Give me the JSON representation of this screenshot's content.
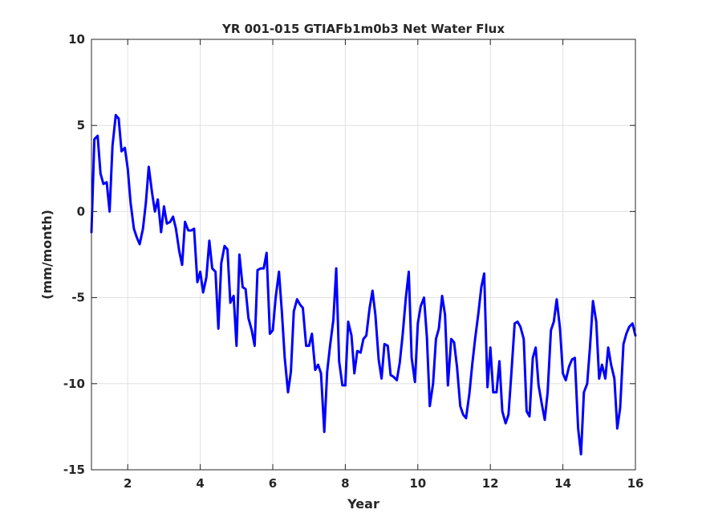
{
  "chart_data": {
    "type": "line",
    "title": "YR 001-015 GTIAFb1m0b3 Net Water Flux",
    "xlabel": "Year",
    "ylabel": "(mm/month)",
    "xlim": [
      1,
      16
    ],
    "ylim": [
      -15,
      10
    ],
    "xticks": [
      2,
      4,
      6,
      8,
      10,
      12,
      14,
      16
    ],
    "yticks": [
      -15,
      -10,
      -5,
      0,
      5,
      10
    ],
    "grid": true,
    "legend": "none",
    "series": [
      {
        "color": "#0000ff",
        "x": [
          1.0,
          1.08,
          1.17,
          1.25,
          1.33,
          1.42,
          1.5,
          1.58,
          1.67,
          1.75,
          1.83,
          1.92,
          2.0,
          2.08,
          2.17,
          2.25,
          2.33,
          2.42,
          2.5,
          2.58,
          2.67,
          2.75,
          2.83,
          2.92,
          3.0,
          3.08,
          3.17,
          3.25,
          3.33,
          3.42,
          3.5,
          3.58,
          3.67,
          3.75,
          3.83,
          3.92,
          4.0,
          4.08,
          4.17,
          4.25,
          4.33,
          4.42,
          4.5,
          4.58,
          4.67,
          4.75,
          4.83,
          4.92,
          5.0,
          5.08,
          5.17,
          5.25,
          5.33,
          5.42,
          5.5,
          5.58,
          5.67,
          5.75,
          5.83,
          5.92,
          6.0,
          6.08,
          6.17,
          6.25,
          6.33,
          6.42,
          6.5,
          6.58,
          6.67,
          6.75,
          6.83,
          6.92,
          7.0,
          7.08,
          7.17,
          7.25,
          7.33,
          7.42,
          7.5,
          7.58,
          7.67,
          7.75,
          7.83,
          7.92,
          8.0,
          8.08,
          8.17,
          8.25,
          8.33,
          8.42,
          8.5,
          8.58,
          8.67,
          8.75,
          8.83,
          8.92,
          9.0,
          9.08,
          9.17,
          9.25,
          9.33,
          9.42,
          9.5,
          9.58,
          9.67,
          9.75,
          9.83,
          9.92,
          10.0,
          10.08,
          10.17,
          10.25,
          10.33,
          10.42,
          10.5,
          10.58,
          10.67,
          10.75,
          10.83,
          10.92,
          11.0,
          11.08,
          11.17,
          11.25,
          11.33,
          11.42,
          11.5,
          11.58,
          11.67,
          11.75,
          11.83,
          11.92,
          12.0,
          12.08,
          12.17,
          12.25,
          12.33,
          12.42,
          12.5,
          12.58,
          12.67,
          12.75,
          12.83,
          12.92,
          13.0,
          13.08,
          13.17,
          13.25,
          13.33,
          13.42,
          13.5,
          13.58,
          13.67,
          13.75,
          13.83,
          13.92,
          14.0,
          14.08,
          14.17,
          14.25,
          14.33,
          14.42,
          14.5,
          14.58,
          14.67,
          14.75,
          14.83,
          14.92,
          15.0,
          15.08,
          15.17,
          15.25,
          15.33,
          15.42,
          15.5,
          15.58,
          15.67,
          15.75,
          15.83,
          15.92,
          16.0
        ],
        "y": [
          -1.2,
          4.2,
          4.4,
          2.2,
          1.6,
          1.7,
          0.0,
          3.8,
          5.6,
          5.4,
          3.5,
          3.7,
          2.5,
          0.5,
          -1.0,
          -1.5,
          -1.9,
          -1.0,
          0.5,
          2.6,
          1.1,
          0.0,
          0.7,
          -1.2,
          0.3,
          -0.7,
          -0.6,
          -0.3,
          -1.0,
          -2.3,
          -3.1,
          -0.6,
          -1.1,
          -1.1,
          -1.0,
          -4.1,
          -3.5,
          -4.7,
          -3.8,
          -1.7,
          -3.3,
          -3.5,
          -6.8,
          -3.0,
          -2.0,
          -2.2,
          -5.3,
          -4.9,
          -7.8,
          -2.5,
          -4.4,
          -4.5,
          -6.2,
          -6.9,
          -7.8,
          -3.4,
          -3.3,
          -3.3,
          -2.4,
          -7.1,
          -6.9,
          -5.0,
          -3.5,
          -5.8,
          -8.5,
          -10.5,
          -9.3,
          -5.8,
          -5.1,
          -5.4,
          -5.6,
          -7.8,
          -7.8,
          -7.1,
          -9.2,
          -8.9,
          -9.4,
          -12.8,
          -9.3,
          -7.8,
          -6.3,
          -3.3,
          -8.7,
          -10.1,
          -10.1,
          -6.4,
          -7.2,
          -9.4,
          -8.1,
          -8.2,
          -7.4,
          -7.2,
          -5.6,
          -4.6,
          -6.0,
          -8.6,
          -9.7,
          -7.7,
          -7.8,
          -9.5,
          -9.6,
          -9.8,
          -8.8,
          -7.2,
          -5.0,
          -3.5,
          -8.5,
          -9.9,
          -6.5,
          -5.5,
          -5.0,
          -7.3,
          -11.3,
          -10.0,
          -7.4,
          -6.8,
          -4.9,
          -6.0,
          -10.1,
          -7.4,
          -7.6,
          -9.0,
          -11.3,
          -11.8,
          -12.0,
          -10.6,
          -8.9,
          -7.4,
          -5.9,
          -4.4,
          -3.6,
          -10.2,
          -7.9,
          -10.5,
          -10.5,
          -8.7,
          -11.6,
          -12.3,
          -11.8,
          -9.4,
          -6.5,
          -6.4,
          -6.7,
          -7.4,
          -11.6,
          -11.9,
          -8.5,
          -7.9,
          -10.1,
          -11.2,
          -12.1,
          -10.5,
          -6.9,
          -6.4,
          -5.1,
          -6.8,
          -9.4,
          -9.8,
          -9.0,
          -8.6,
          -8.5,
          -12.6,
          -14.1,
          -10.5,
          -10.0,
          -7.8,
          -5.2,
          -6.4,
          -9.7,
          -8.9,
          -9.7,
          -7.9,
          -8.9,
          -9.7,
          -12.6,
          -11.4,
          -7.7,
          -7.1,
          -6.7,
          -6.5,
          -7.2
        ]
      }
    ]
  }
}
